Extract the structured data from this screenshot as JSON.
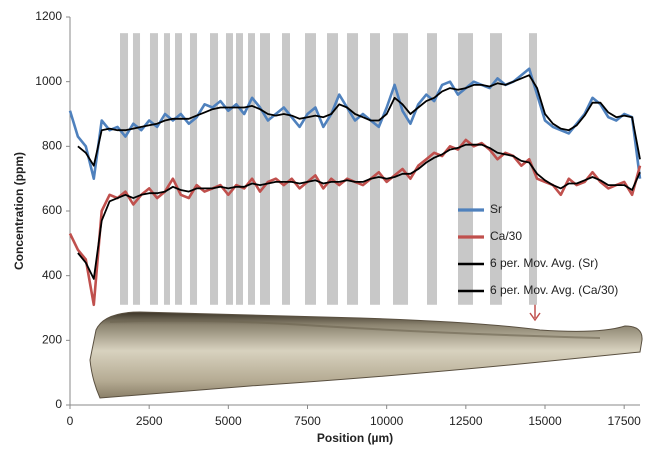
{
  "chart_data": {
    "type": "line",
    "x_label": "Position (µm)",
    "y_label": "Concentration (ppm)",
    "xlim": [
      0,
      18000
    ],
    "xticks": [
      0,
      2500,
      5000,
      7500,
      10000,
      12500,
      15000,
      17500
    ],
    "ylim": [
      0,
      1200
    ],
    "yticks": [
      0,
      200,
      400,
      600,
      800,
      1000,
      1200
    ],
    "grid": false,
    "legend": "right",
    "band_color": "#c8c8c8",
    "band_ylim": [
      310,
      1150
    ],
    "bands": [
      [
        1579,
        1832
      ],
      [
        1989,
        2211
      ],
      [
        2526,
        2779
      ],
      [
        2968,
        3158
      ],
      [
        3316,
        3537
      ],
      [
        3789,
        4011
      ],
      [
        4421,
        4674
      ],
      [
        4926,
        5147
      ],
      [
        5242,
        5463
      ],
      [
        5621,
        5842
      ],
      [
        6000,
        6316
      ],
      [
        6695,
        6947
      ],
      [
        7421,
        7768
      ],
      [
        8116,
        8463
      ],
      [
        8747,
        9095
      ],
      [
        9474,
        9789
      ],
      [
        10200,
        10674
      ],
      [
        11274,
        11589
      ],
      [
        12253,
        12726
      ],
      [
        13263,
        13642
      ],
      [
        14495,
        14747
      ]
    ],
    "x": [
      0,
      250,
      500,
      750,
      1000,
      1250,
      1500,
      1750,
      2000,
      2250,
      2500,
      2750,
      3000,
      3250,
      3500,
      3750,
      4000,
      4250,
      4500,
      4750,
      5000,
      5250,
      5500,
      5750,
      6000,
      6250,
      6500,
      6750,
      7000,
      7250,
      7500,
      7750,
      8000,
      8250,
      8500,
      8750,
      9000,
      9250,
      9500,
      9750,
      10000,
      10250,
      10500,
      10750,
      11000,
      11250,
      11500,
      11750,
      12000,
      12250,
      12500,
      12750,
      13000,
      13250,
      13500,
      13750,
      14000,
      14250,
      14500,
      14750,
      15000,
      15250,
      15500,
      15750,
      16000,
      16250,
      16500,
      16750,
      17000,
      17250,
      17500,
      17750,
      18000
    ],
    "series": [
      {
        "name": "Sr",
        "color": "#4f81bd",
        "width": 2.6,
        "values": [
          910,
          830,
          800,
          700,
          880,
          850,
          860,
          830,
          870,
          850,
          880,
          860,
          900,
          880,
          900,
          870,
          890,
          930,
          920,
          940,
          910,
          930,
          900,
          950,
          920,
          880,
          900,
          920,
          890,
          860,
          900,
          920,
          860,
          900,
          960,
          920,
          880,
          900,
          880,
          860,
          920,
          990,
          910,
          870,
          930,
          960,
          940,
          990,
          1000,
          960,
          980,
          1000,
          990,
          980,
          1010,
          990,
          1000,
          1020,
          1040,
          960,
          880,
          860,
          850,
          840,
          870,
          900,
          950,
          930,
          890,
          880,
          900,
          890,
          700
        ]
      },
      {
        "name": "Ca/30",
        "color": "#c0504d",
        "width": 2.6,
        "values": [
          530,
          480,
          450,
          310,
          600,
          650,
          640,
          660,
          620,
          650,
          670,
          640,
          660,
          700,
          650,
          640,
          680,
          660,
          670,
          680,
          650,
          680,
          670,
          700,
          660,
          690,
          700,
          680,
          700,
          670,
          690,
          710,
          670,
          700,
          680,
          700,
          690,
          680,
          700,
          720,
          690,
          710,
          730,
          700,
          740,
          760,
          780,
          770,
          800,
          790,
          820,
          800,
          810,
          790,
          760,
          780,
          770,
          740,
          760,
          700,
          690,
          680,
          650,
          700,
          680,
          690,
          720,
          690,
          670,
          680,
          690,
          650,
          740
        ]
      },
      {
        "name": "6 per. Mov. Avg. (Sr)",
        "color": "#000000",
        "width": 1.8,
        "values": [
          null,
          800,
          780,
          740,
          850,
          855,
          850,
          850,
          855,
          860,
          865,
          870,
          880,
          885,
          885,
          885,
          895,
          905,
          915,
          920,
          920,
          920,
          920,
          925,
          915,
          900,
          895,
          900,
          895,
          885,
          890,
          895,
          890,
          900,
          930,
          920,
          900,
          890,
          880,
          880,
          900,
          950,
          930,
          900,
          920,
          940,
          950,
          970,
          980,
          975,
          980,
          990,
          990,
          985,
          995,
          990,
          1000,
          1010,
          1020,
          980,
          900,
          870,
          855,
          850,
          865,
          895,
          935,
          935,
          905,
          890,
          895,
          890,
          760
        ]
      },
      {
        "name": "6 per. Mov. Avg. (Ca/30)",
        "color": "#000000",
        "width": 1.8,
        "values": [
          null,
          470,
          440,
          390,
          570,
          630,
          640,
          650,
          640,
          650,
          655,
          655,
          660,
          675,
          665,
          660,
          670,
          670,
          670,
          675,
          670,
          675,
          675,
          685,
          680,
          685,
          690,
          690,
          690,
          685,
          690,
          695,
          685,
          690,
          690,
          695,
          690,
          690,
          700,
          705,
          700,
          705,
          715,
          715,
          730,
          750,
          765,
          775,
          790,
          795,
          805,
          805,
          805,
          795,
          780,
          775,
          770,
          755,
          750,
          715,
          695,
          680,
          670,
          685,
          685,
          695,
          705,
          695,
          680,
          680,
          680,
          665,
          720
        ]
      }
    ]
  }
}
